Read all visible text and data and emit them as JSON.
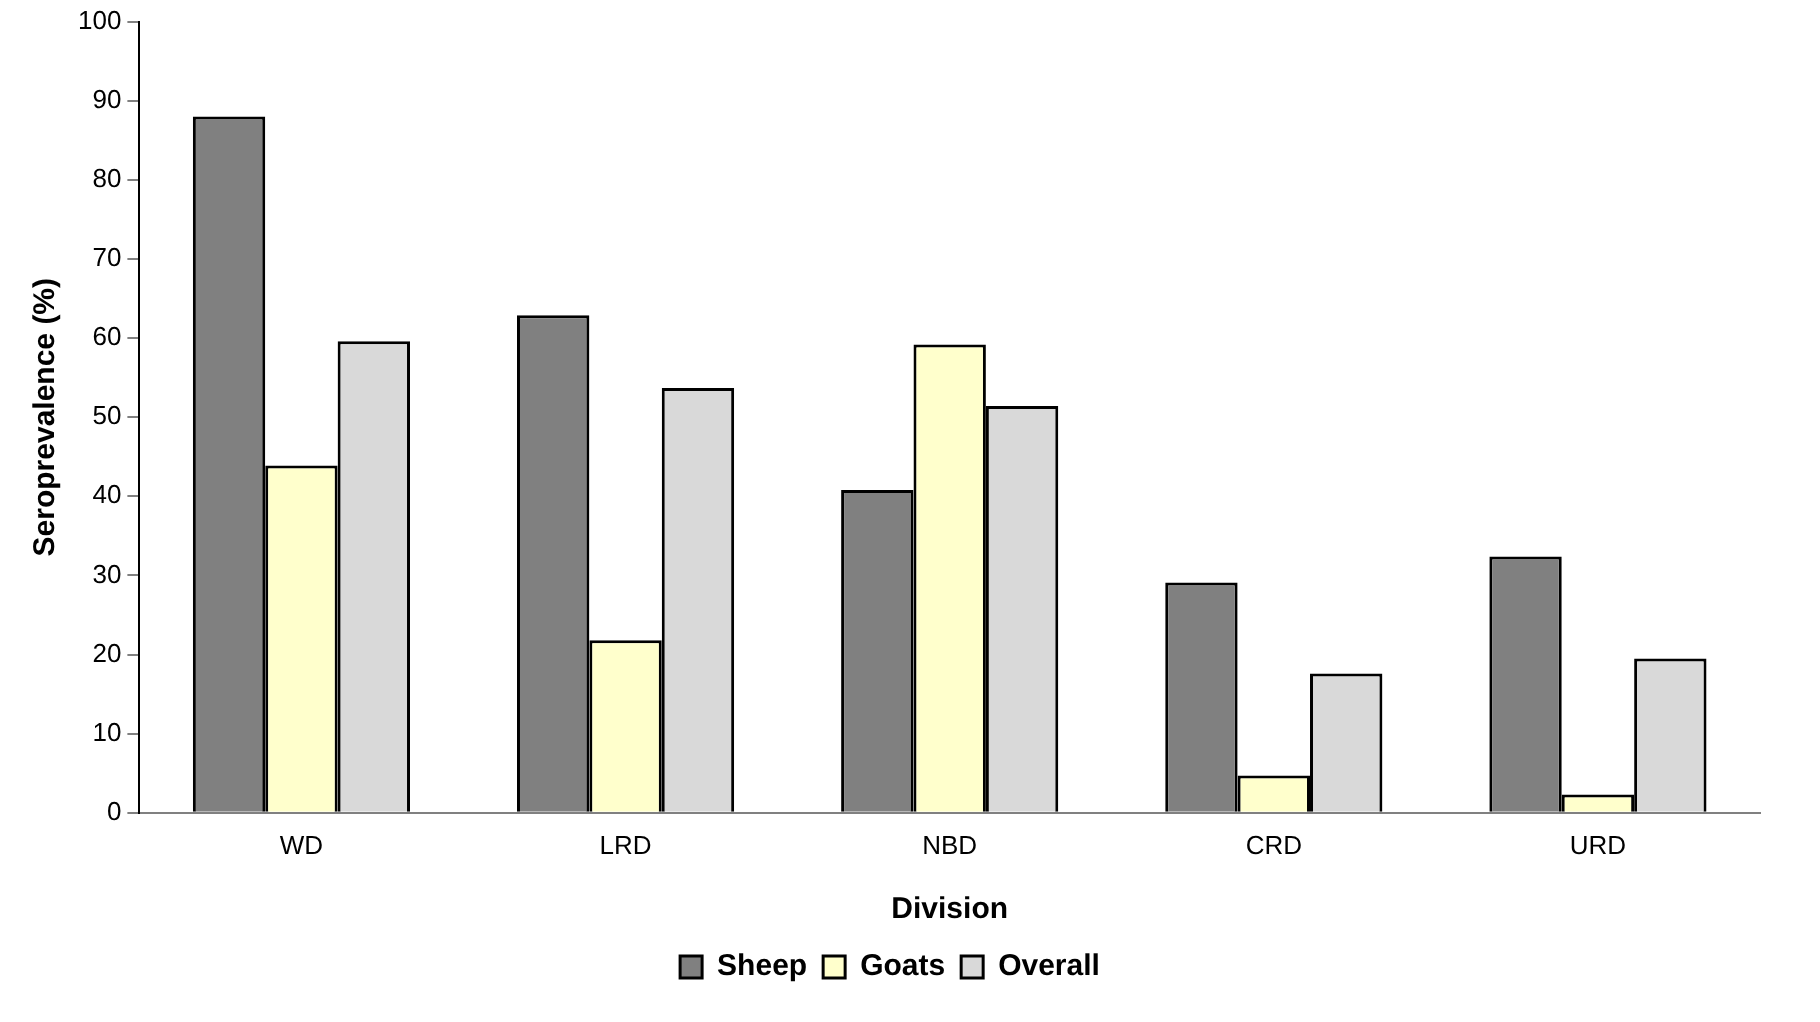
{
  "chart_data": {
    "type": "bar",
    "xlabel": "Division",
    "ylabel": "Seroprevalence (%)",
    "categories": [
      "WD",
      "LRD",
      "NBD",
      "CRD",
      "URD"
    ],
    "series": [
      {
        "name": "Sheep",
        "color": "#808080",
        "values": [
          88.0,
          62.9,
          40.8,
          29.1,
          32.4
        ]
      },
      {
        "name": "Goats",
        "color": "#ffffcc",
        "values": [
          43.9,
          21.8,
          59.2,
          4.7,
          2.3
        ]
      },
      {
        "name": "Overall",
        "color": "#d9d9d9",
        "values": [
          59.6,
          53.7,
          51.4,
          17.6,
          19.5
        ]
      }
    ],
    "ylim": [
      0,
      100
    ],
    "yticks": [
      0,
      10,
      20,
      30,
      40,
      50,
      60,
      70,
      80,
      90,
      100
    ],
    "grid": false,
    "legend": "bottom"
  }
}
